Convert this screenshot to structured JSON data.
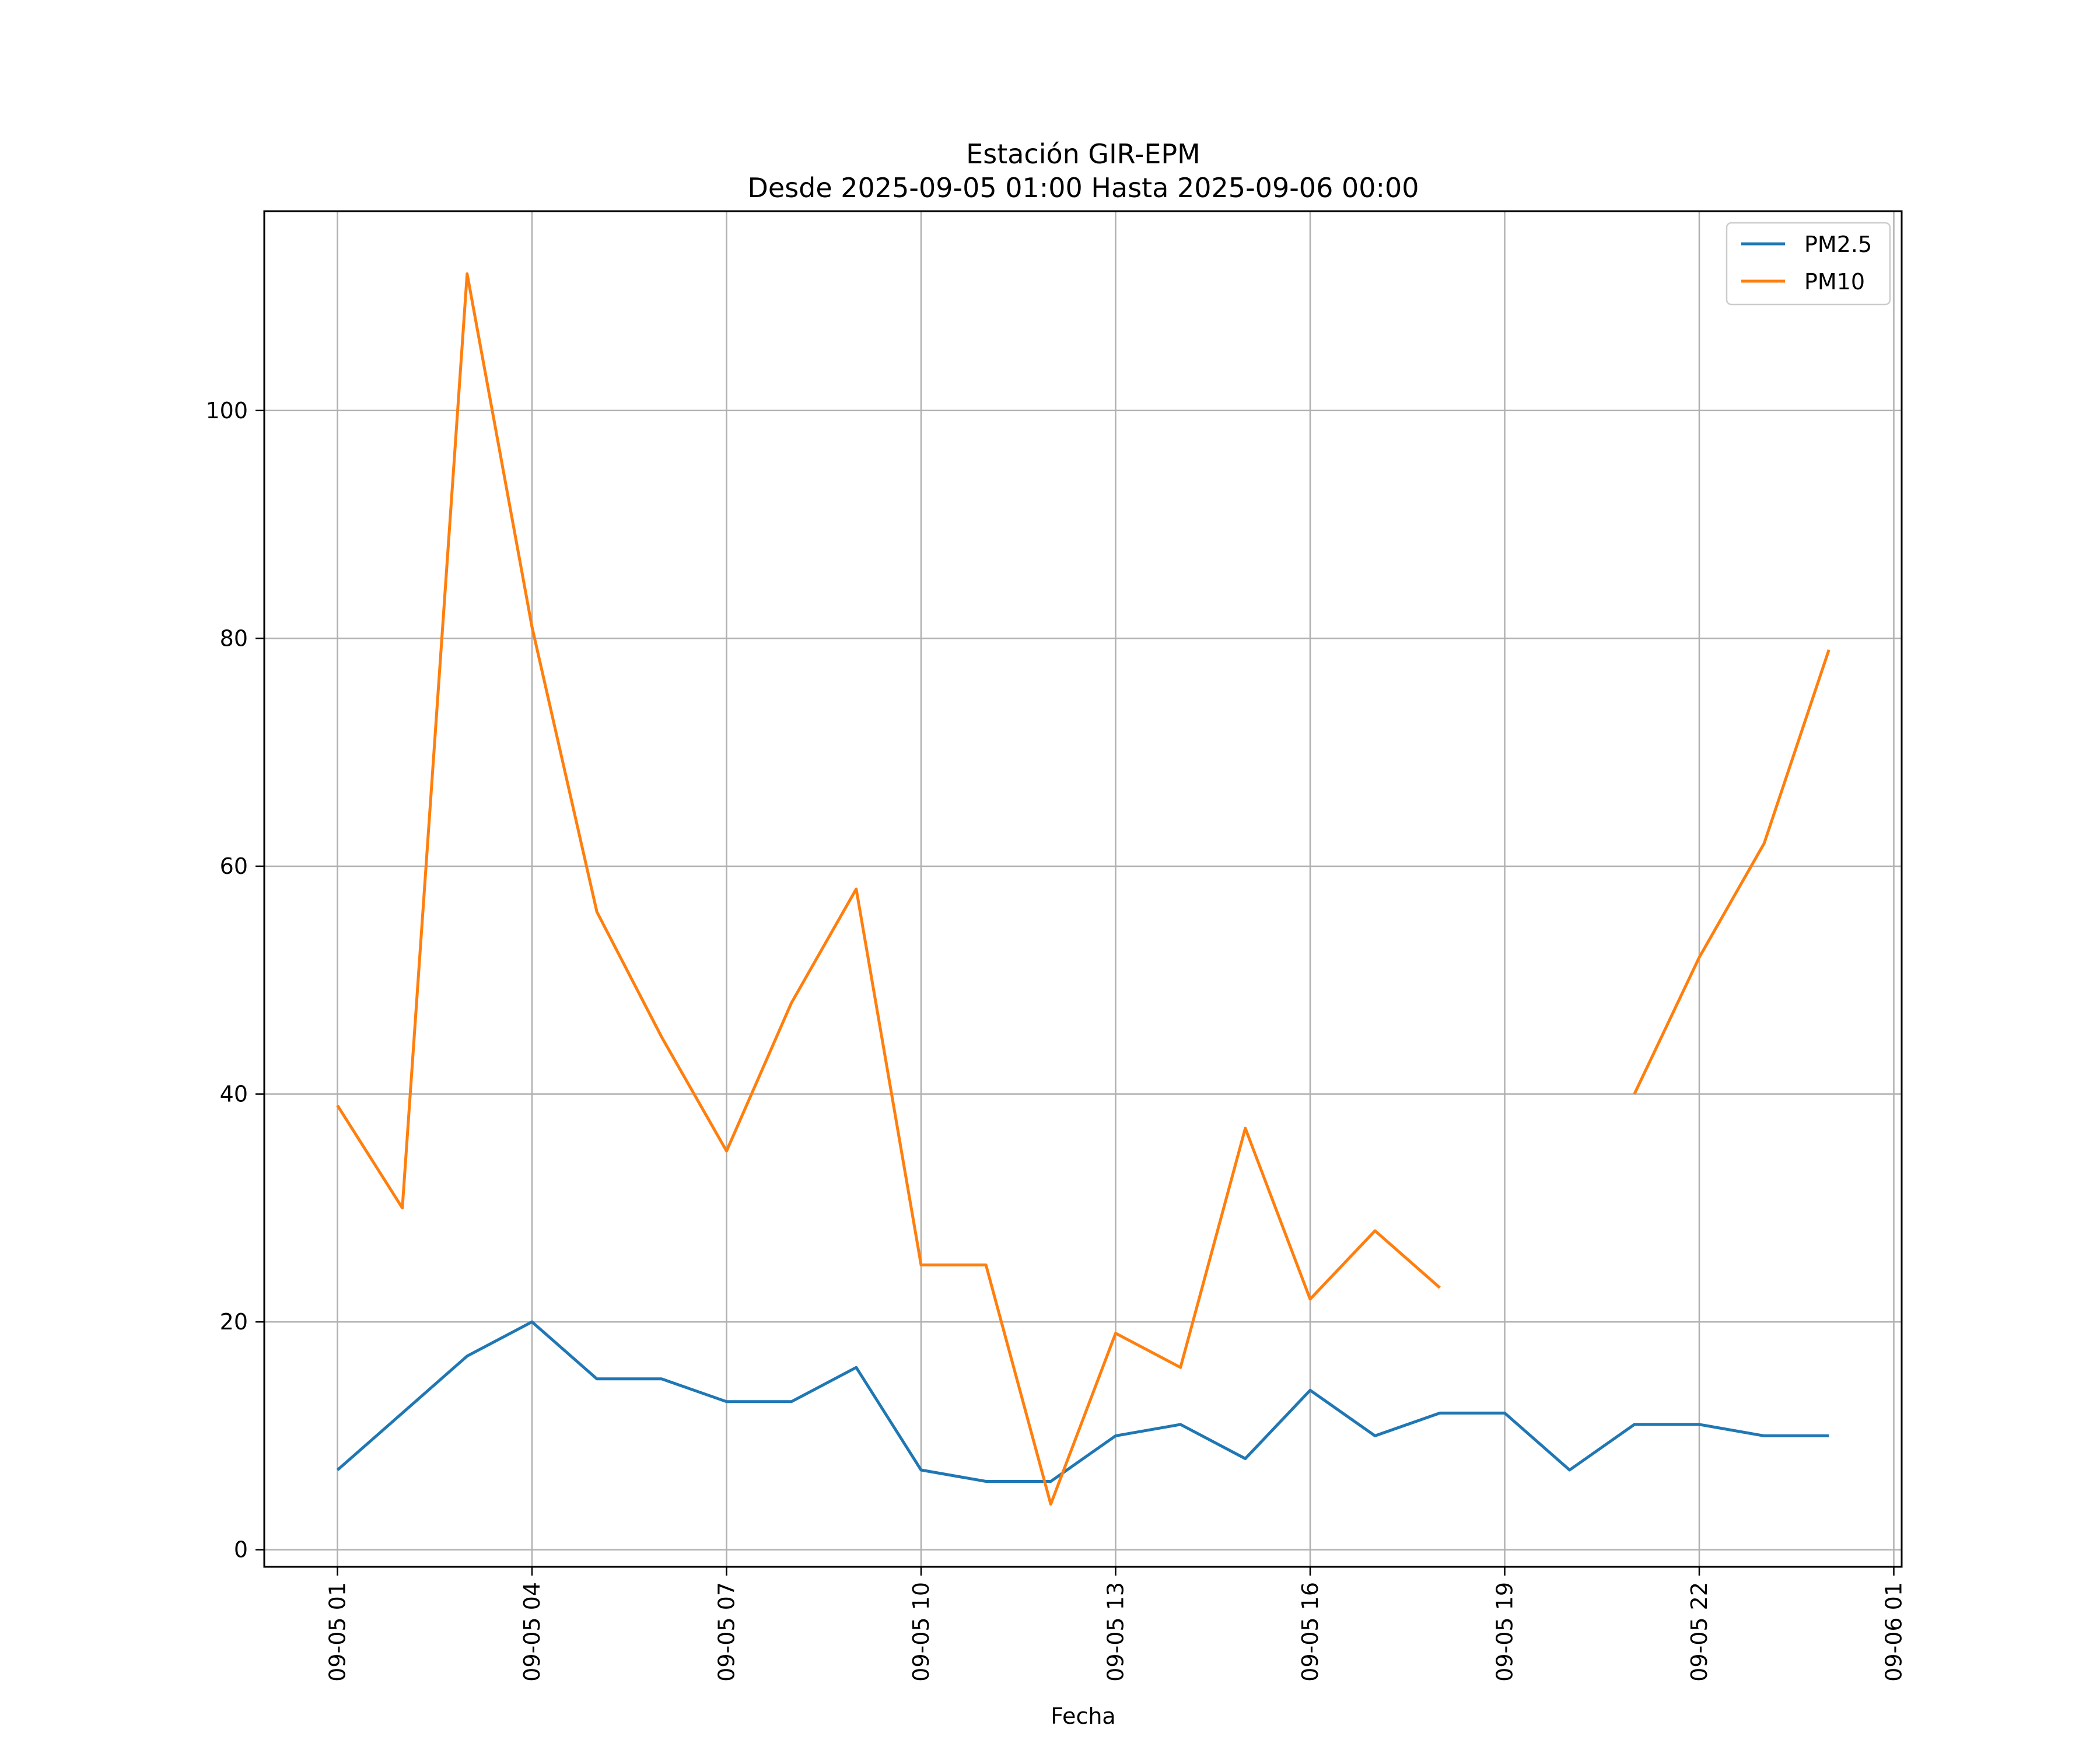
{
  "chart_data": {
    "type": "line",
    "title": "Estación GIR-EPM",
    "subtitle": "Desde 2025-09-05 01:00 Hasta 2025-09-06 00:00",
    "xlabel": "Fecha",
    "ylabel": "",
    "ylim": [
      -1.5,
      117.5
    ],
    "yticks": [
      0,
      20,
      40,
      60,
      80,
      100
    ],
    "xticks": [
      {
        "hour": 1,
        "label": "09-05 01"
      },
      {
        "hour": 4,
        "label": "09-05 04"
      },
      {
        "hour": 7,
        "label": "09-05 07"
      },
      {
        "hour": 10,
        "label": "09-05 10"
      },
      {
        "hour": 13,
        "label": "09-05 13"
      },
      {
        "hour": 16,
        "label": "09-05 16"
      },
      {
        "hour": 19,
        "label": "09-05 19"
      },
      {
        "hour": 22,
        "label": "09-05 22"
      },
      {
        "hour": 25,
        "label": "09-06 01"
      }
    ],
    "x_hours": [
      1,
      2,
      3,
      4,
      5,
      6,
      7,
      8,
      9,
      10,
      11,
      12,
      13,
      14,
      15,
      16,
      17,
      18,
      19,
      20,
      21,
      22,
      23,
      24
    ],
    "grid": true,
    "legend_position": "top-right",
    "series": [
      {
        "name": "PM2.5",
        "color": "#1f77b4",
        "values": [
          7,
          12,
          17,
          20,
          15,
          15,
          13,
          13,
          16,
          7,
          6,
          6,
          10,
          11,
          8,
          14,
          10,
          12,
          12,
          7,
          11,
          11,
          10,
          10
        ]
      },
      {
        "name": "PM10",
        "color": "#ff7f0e",
        "values": [
          39,
          30,
          112,
          81,
          56,
          45,
          35,
          48,
          58,
          25,
          25,
          4,
          19,
          16,
          37,
          22,
          28,
          23,
          null,
          null,
          40,
          52,
          62,
          79
        ]
      }
    ]
  }
}
